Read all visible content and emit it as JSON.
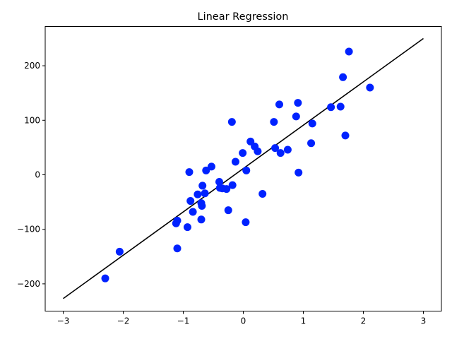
{
  "chart_data": {
    "type": "scatter",
    "title": "Linear Regression",
    "xlabel": "",
    "ylabel": "",
    "xlim": [
      -3.3,
      3.3
    ],
    "ylim": [
      -250,
      272
    ],
    "xticks": [
      -3,
      -2,
      -1,
      0,
      1,
      2,
      3
    ],
    "yticks": [
      -200,
      -100,
      0,
      100,
      200
    ],
    "grid": false,
    "point_color": "#0022ff",
    "line_color": "#000000",
    "points": [
      [
        -2.3,
        -190
      ],
      [
        -2.06,
        -141
      ],
      [
        -1.1,
        -135
      ],
      [
        -1.12,
        -89
      ],
      [
        -1.1,
        -84
      ],
      [
        -0.93,
        -96
      ],
      [
        -0.88,
        -48
      ],
      [
        -0.84,
        -68
      ],
      [
        -0.9,
        5
      ],
      [
        -0.76,
        -36
      ],
      [
        -0.7,
        -52
      ],
      [
        -0.69,
        -57
      ],
      [
        -0.68,
        -20
      ],
      [
        -0.7,
        -82
      ],
      [
        -0.64,
        -34
      ],
      [
        -0.62,
        8
      ],
      [
        -0.53,
        15
      ],
      [
        -0.39,
        -24
      ],
      [
        -0.4,
        -13
      ],
      [
        -0.35,
        -25
      ],
      [
        -0.28,
        -26
      ],
      [
        -0.25,
        -65
      ],
      [
        -0.18,
        -19
      ],
      [
        -0.19,
        97
      ],
      [
        -0.13,
        24
      ],
      [
        -0.01,
        40
      ],
      [
        0.05,
        8
      ],
      [
        0.04,
        -87
      ],
      [
        0.12,
        61
      ],
      [
        0.19,
        52
      ],
      [
        0.24,
        43
      ],
      [
        0.32,
        -35
      ],
      [
        0.51,
        97
      ],
      [
        0.53,
        49
      ],
      [
        0.6,
        129
      ],
      [
        0.62,
        40
      ],
      [
        0.74,
        46
      ],
      [
        0.88,
        107
      ],
      [
        0.91,
        132
      ],
      [
        0.92,
        4
      ],
      [
        1.13,
        58
      ],
      [
        1.15,
        94
      ],
      [
        1.46,
        124
      ],
      [
        1.62,
        125
      ],
      [
        1.66,
        179
      ],
      [
        1.7,
        72
      ],
      [
        1.76,
        226
      ],
      [
        2.11,
        160
      ]
    ],
    "fit_line": {
      "x": [
        -3,
        3
      ],
      "y": [
        -227,
        250
      ]
    }
  }
}
